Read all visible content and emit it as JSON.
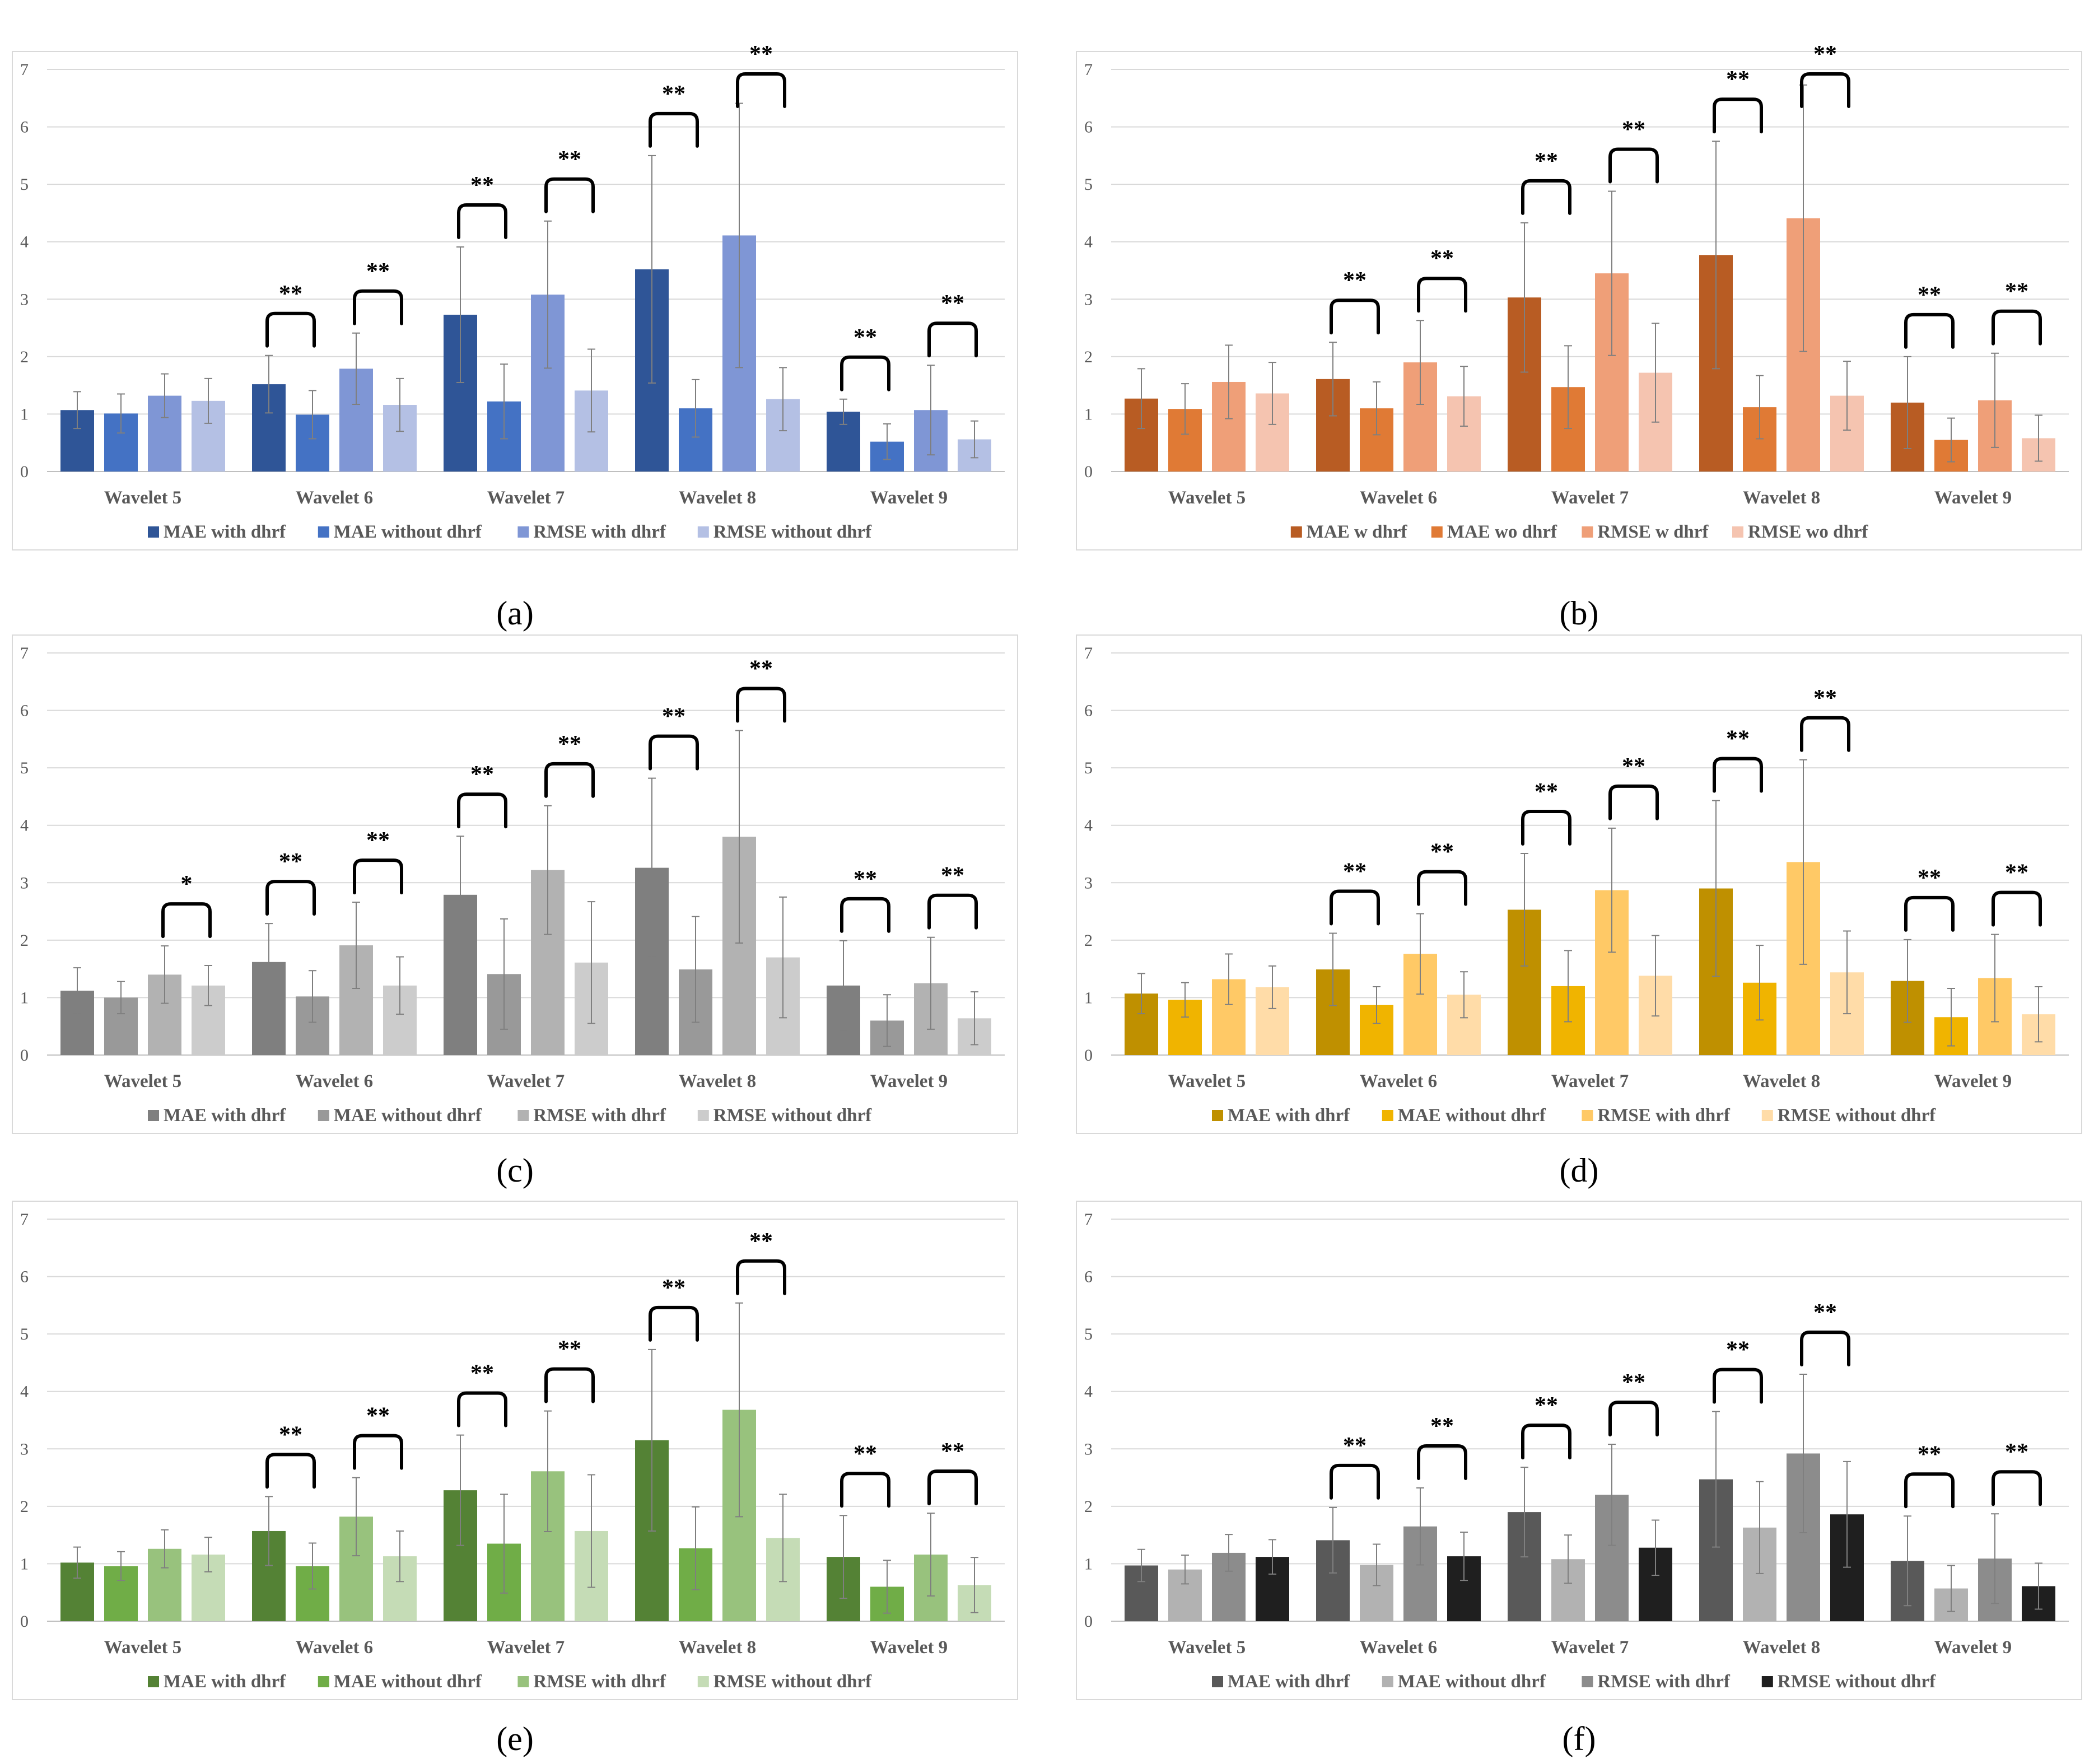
{
  "chart_data": [
    {
      "type": "bar",
      "caption": "(a)",
      "categories": [
        "Wavelet 5",
        "Wavelet 6",
        "Wavelet 7",
        "Wavelet 8",
        "Wavelet 9"
      ],
      "ylim": [
        0,
        7
      ],
      "yticks": [
        "0",
        "1",
        "2",
        "3",
        "4",
        "5",
        "6",
        "7"
      ],
      "grid": true,
      "legend_position": "bottom",
      "series": [
        {
          "name": "MAE with dhrf",
          "color": "#2f5597",
          "values": [
            1.07,
            1.52,
            2.73,
            3.52,
            1.04
          ],
          "errors": [
            0.32,
            0.5,
            1.18,
            1.98,
            0.22
          ]
        },
        {
          "name": "MAE without dhrf",
          "color": "#4472c4",
          "values": [
            1.01,
            0.99,
            1.22,
            1.1,
            0.52
          ],
          "errors": [
            0.34,
            0.42,
            0.65,
            0.5,
            0.31
          ]
        },
        {
          "name": "RMSE with dhrf",
          "color": "#7f96d5",
          "values": [
            1.32,
            1.79,
            3.08,
            4.11,
            1.07
          ],
          "errors": [
            0.38,
            0.62,
            1.28,
            2.3,
            0.78
          ]
        },
        {
          "name": "RMSE without dhrf",
          "color": "#b4c0e4",
          "values": [
            1.23,
            1.16,
            1.41,
            1.26,
            0.56
          ],
          "errors": [
            0.39,
            0.46,
            0.72,
            0.55,
            0.32
          ]
        }
      ],
      "significance": [
        {
          "category": 1,
          "pair": [
            0,
            1
          ],
          "label": "**"
        },
        {
          "category": 1,
          "pair": [
            2,
            3
          ],
          "label": "**"
        },
        {
          "category": 2,
          "pair": [
            0,
            1
          ],
          "label": "**"
        },
        {
          "category": 2,
          "pair": [
            2,
            3
          ],
          "label": "**"
        },
        {
          "category": 3,
          "pair": [
            0,
            1
          ],
          "label": "**"
        },
        {
          "category": 3,
          "pair": [
            2,
            3
          ],
          "label": "**"
        },
        {
          "category": 4,
          "pair": [
            0,
            1
          ],
          "label": "**"
        },
        {
          "category": 4,
          "pair": [
            2,
            3
          ],
          "label": "**"
        }
      ]
    },
    {
      "type": "bar",
      "caption": "(b)",
      "categories": [
        "Wavelet 5",
        "Wavelet 6",
        "Wavelet 7",
        "Wavelet 8",
        "Wavelet 9"
      ],
      "ylim": [
        0,
        7
      ],
      "yticks": [
        "0",
        "1",
        "2",
        "3",
        "4",
        "5",
        "6",
        "7"
      ],
      "grid": true,
      "legend_position": "bottom",
      "series": [
        {
          "name": "MAE w dhrf",
          "color": "#b85c23",
          "values": [
            1.27,
            1.61,
            3.03,
            3.77,
            1.2
          ],
          "errors": [
            0.52,
            0.64,
            1.3,
            1.98,
            0.8
          ]
        },
        {
          "name": "MAE wo dhrf",
          "color": "#e07a35",
          "values": [
            1.09,
            1.1,
            1.47,
            1.12,
            0.55
          ],
          "errors": [
            0.44,
            0.46,
            0.72,
            0.55,
            0.38
          ]
        },
        {
          "name": "RMSE w dhrf",
          "color": "#ef9f78",
          "values": [
            1.56,
            1.9,
            3.45,
            4.41,
            1.24
          ],
          "errors": [
            0.64,
            0.73,
            1.43,
            2.32,
            0.82
          ]
        },
        {
          "name": "RMSE wo dhrf",
          "color": "#f5c4b0",
          "values": [
            1.36,
            1.31,
            1.72,
            1.32,
            0.58
          ],
          "errors": [
            0.54,
            0.52,
            0.86,
            0.6,
            0.4
          ]
        }
      ],
      "significance": [
        {
          "category": 1,
          "pair": [
            0,
            1
          ],
          "label": "**"
        },
        {
          "category": 1,
          "pair": [
            2,
            3
          ],
          "label": "**"
        },
        {
          "category": 2,
          "pair": [
            0,
            1
          ],
          "label": "**"
        },
        {
          "category": 2,
          "pair": [
            2,
            3
          ],
          "label": "**"
        },
        {
          "category": 3,
          "pair": [
            0,
            1
          ],
          "label": "**"
        },
        {
          "category": 3,
          "pair": [
            2,
            3
          ],
          "label": "**"
        },
        {
          "category": 4,
          "pair": [
            0,
            1
          ],
          "label": "**"
        },
        {
          "category": 4,
          "pair": [
            2,
            3
          ],
          "label": "**"
        }
      ]
    },
    {
      "type": "bar",
      "caption": "(c)",
      "categories": [
        "Wavelet 5",
        "Wavelet 6",
        "Wavelet 7",
        "Wavelet 8",
        "Wavelet 9"
      ],
      "ylim": [
        0,
        7
      ],
      "yticks": [
        "0",
        "1",
        "2",
        "3",
        "4",
        "5",
        "6",
        "7"
      ],
      "grid": true,
      "legend_position": "bottom",
      "series": [
        {
          "name": "MAE with dhrf",
          "color": "#7f7f7f",
          "values": [
            1.12,
            1.62,
            2.79,
            3.26,
            1.21
          ],
          "errors": [
            0.4,
            0.67,
            1.02,
            1.56,
            0.78
          ]
        },
        {
          "name": "MAE without dhrf",
          "color": "#999999",
          "values": [
            1.0,
            1.02,
            1.41,
            1.49,
            0.6
          ],
          "errors": [
            0.28,
            0.45,
            0.96,
            0.92,
            0.45
          ]
        },
        {
          "name": "RMSE with dhrf",
          "color": "#b2b2b2",
          "values": [
            1.4,
            1.91,
            3.22,
            3.8,
            1.25
          ],
          "errors": [
            0.5,
            0.75,
            1.12,
            1.85,
            0.8
          ]
        },
        {
          "name": "RMSE without dhrf",
          "color": "#cccccc",
          "values": [
            1.21,
            1.21,
            1.61,
            1.7,
            0.64
          ],
          "errors": [
            0.35,
            0.5,
            1.06,
            1.05,
            0.46
          ]
        }
      ],
      "significance": [
        {
          "category": 0,
          "pair": [
            2,
            3
          ],
          "label": "*"
        },
        {
          "category": 1,
          "pair": [
            0,
            1
          ],
          "label": "**"
        },
        {
          "category": 1,
          "pair": [
            2,
            3
          ],
          "label": "**"
        },
        {
          "category": 2,
          "pair": [
            0,
            1
          ],
          "label": "**"
        },
        {
          "category": 2,
          "pair": [
            2,
            3
          ],
          "label": "**"
        },
        {
          "category": 3,
          "pair": [
            0,
            1
          ],
          "label": "**"
        },
        {
          "category": 3,
          "pair": [
            2,
            3
          ],
          "label": "**"
        },
        {
          "category": 4,
          "pair": [
            0,
            1
          ],
          "label": "**"
        },
        {
          "category": 4,
          "pair": [
            2,
            3
          ],
          "label": "**"
        }
      ]
    },
    {
      "type": "bar",
      "caption": "(d)",
      "categories": [
        "Wavelet 5",
        "Wavelet 6",
        "Wavelet 7",
        "Wavelet 8",
        "Wavelet 9"
      ],
      "ylim": [
        0,
        7
      ],
      "yticks": [
        "0",
        "1",
        "2",
        "3",
        "4",
        "5",
        "6",
        "7"
      ],
      "grid": true,
      "legend_position": "bottom",
      "series": [
        {
          "name": "MAE with dhrf",
          "color": "#bf9000",
          "values": [
            1.07,
            1.49,
            2.53,
            2.9,
            1.29
          ],
          "errors": [
            0.35,
            0.63,
            0.98,
            1.53,
            0.72
          ]
        },
        {
          "name": "MAE without dhrf",
          "color": "#f0b400",
          "values": [
            0.96,
            0.87,
            1.2,
            1.26,
            0.66
          ],
          "errors": [
            0.3,
            0.32,
            0.62,
            0.65,
            0.5
          ]
        },
        {
          "name": "RMSE with dhrf",
          "color": "#ffc966",
          "values": [
            1.32,
            1.76,
            2.87,
            3.36,
            1.34
          ],
          "errors": [
            0.44,
            0.7,
            1.08,
            1.78,
            0.76
          ]
        },
        {
          "name": "RMSE without dhrf",
          "color": "#ffdca8",
          "values": [
            1.18,
            1.05,
            1.38,
            1.44,
            0.71
          ],
          "errors": [
            0.37,
            0.4,
            0.7,
            0.72,
            0.48
          ]
        }
      ],
      "significance": [
        {
          "category": 1,
          "pair": [
            0,
            1
          ],
          "label": "**"
        },
        {
          "category": 1,
          "pair": [
            2,
            3
          ],
          "label": "**"
        },
        {
          "category": 2,
          "pair": [
            0,
            1
          ],
          "label": "**"
        },
        {
          "category": 2,
          "pair": [
            2,
            3
          ],
          "label": "**"
        },
        {
          "category": 3,
          "pair": [
            0,
            1
          ],
          "label": "**"
        },
        {
          "category": 3,
          "pair": [
            2,
            3
          ],
          "label": "**"
        },
        {
          "category": 4,
          "pair": [
            0,
            1
          ],
          "label": "**"
        },
        {
          "category": 4,
          "pair": [
            2,
            3
          ],
          "label": "**"
        }
      ]
    },
    {
      "type": "bar",
      "caption": "(e)",
      "categories": [
        "Wavelet 5",
        "Wavelet 6",
        "Wavelet 7",
        "Wavelet 8",
        "Wavelet 9"
      ],
      "ylim": [
        0,
        7
      ],
      "yticks": [
        "0",
        "1",
        "2",
        "3",
        "4",
        "5",
        "6",
        "7"
      ],
      "grid": true,
      "legend_position": "bottom",
      "series": [
        {
          "name": "MAE with dhrf",
          "color": "#548235",
          "values": [
            1.02,
            1.57,
            2.28,
            3.15,
            1.12
          ],
          "errors": [
            0.27,
            0.6,
            0.96,
            1.58,
            0.72
          ]
        },
        {
          "name": "MAE without dhrf",
          "color": "#70ad47",
          "values": [
            0.96,
            0.96,
            1.35,
            1.27,
            0.6
          ],
          "errors": [
            0.25,
            0.4,
            0.86,
            0.72,
            0.46
          ]
        },
        {
          "name": "RMSE with dhrf",
          "color": "#98c27d",
          "values": [
            1.26,
            1.82,
            2.61,
            3.68,
            1.16
          ],
          "errors": [
            0.33,
            0.68,
            1.05,
            1.86,
            0.72
          ]
        },
        {
          "name": "RMSE without dhrf",
          "color": "#c5dcb6",
          "values": [
            1.16,
            1.13,
            1.57,
            1.45,
            0.63
          ],
          "errors": [
            0.3,
            0.44,
            0.98,
            0.76,
            0.48
          ]
        }
      ],
      "significance": [
        {
          "category": 1,
          "pair": [
            0,
            1
          ],
          "label": "**"
        },
        {
          "category": 1,
          "pair": [
            2,
            3
          ],
          "label": "**"
        },
        {
          "category": 2,
          "pair": [
            0,
            1
          ],
          "label": "**"
        },
        {
          "category": 2,
          "pair": [
            2,
            3
          ],
          "label": "**"
        },
        {
          "category": 3,
          "pair": [
            0,
            1
          ],
          "label": "**"
        },
        {
          "category": 3,
          "pair": [
            2,
            3
          ],
          "label": "**"
        },
        {
          "category": 4,
          "pair": [
            0,
            1
          ],
          "label": "**"
        },
        {
          "category": 4,
          "pair": [
            2,
            3
          ],
          "label": "**"
        }
      ]
    },
    {
      "type": "bar",
      "caption": "(f)",
      "categories": [
        "Wavelet 5",
        "Wavelet 6",
        "Wavelet 7",
        "Wavelet 8",
        "Wavelet 9"
      ],
      "ylim": [
        0,
        7
      ],
      "yticks": [
        "0",
        "1",
        "2",
        "3",
        "4",
        "5",
        "6",
        "7"
      ],
      "grid": true,
      "legend_position": "bottom",
      "series": [
        {
          "name": "MAE with dhrf",
          "color": "#595959",
          "values": [
            0.97,
            1.41,
            1.9,
            2.47,
            1.05
          ],
          "errors": [
            0.28,
            0.57,
            0.78,
            1.18,
            0.78
          ]
        },
        {
          "name": "MAE without dhrf",
          "color": "#b2b2b2",
          "values": [
            0.9,
            0.98,
            1.08,
            1.63,
            0.57
          ],
          "errors": [
            0.25,
            0.36,
            0.42,
            0.8,
            0.4
          ]
        },
        {
          "name": "RMSE with dhrf",
          "color": "#8c8c8c",
          "values": [
            1.19,
            1.65,
            2.2,
            2.92,
            1.09
          ],
          "errors": [
            0.32,
            0.67,
            0.88,
            1.38,
            0.78
          ]
        },
        {
          "name": "RMSE without dhrf",
          "color": "#1f1f1f",
          "values": [
            1.12,
            1.13,
            1.28,
            1.86,
            0.61
          ],
          "errors": [
            0.3,
            0.42,
            0.48,
            0.92,
            0.4
          ]
        }
      ],
      "significance": [
        {
          "category": 1,
          "pair": [
            0,
            1
          ],
          "label": "**"
        },
        {
          "category": 1,
          "pair": [
            2,
            3
          ],
          "label": "**"
        },
        {
          "category": 2,
          "pair": [
            0,
            1
          ],
          "label": "**"
        },
        {
          "category": 2,
          "pair": [
            2,
            3
          ],
          "label": "**"
        },
        {
          "category": 3,
          "pair": [
            0,
            1
          ],
          "label": "**"
        },
        {
          "category": 3,
          "pair": [
            2,
            3
          ],
          "label": "**"
        },
        {
          "category": 4,
          "pair": [
            0,
            1
          ],
          "label": "**"
        },
        {
          "category": 4,
          "pair": [
            2,
            3
          ],
          "label": "**"
        }
      ]
    }
  ]
}
